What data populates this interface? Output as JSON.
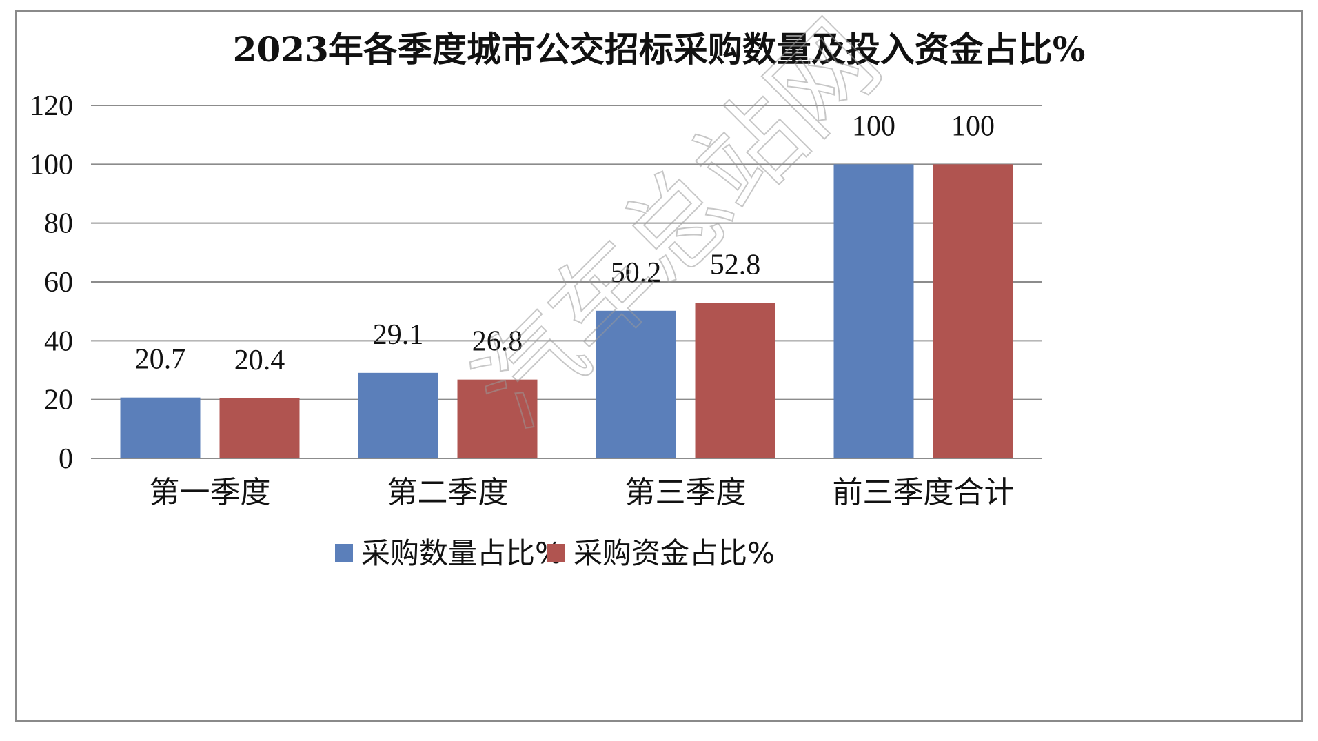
{
  "watermark": "汽车总站网",
  "chart_data": {
    "type": "bar",
    "title": "2023年各季度城市公交招标采购数量及投入资金占比%",
    "categories": [
      "第一季度",
      "第二季度",
      "第三季度",
      "前三季度合计"
    ],
    "series": [
      {
        "name": "采购数量占比%",
        "color": "#5b7fba",
        "values": [
          20.7,
          29.1,
          50.2,
          100
        ]
      },
      {
        "name": "采购资金占比%",
        "color": "#b05450",
        "values": [
          20.4,
          26.8,
          52.8,
          100
        ]
      }
    ],
    "value_labels": [
      [
        "20.7",
        "29.1",
        "50.2",
        "100"
      ],
      [
        "20.4",
        "26.8",
        "52.8",
        "100"
      ]
    ],
    "ylim": [
      0,
      120
    ],
    "yticks": [
      "0",
      "20",
      "40",
      "60",
      "80",
      "100",
      "120"
    ],
    "xlabel": "",
    "ylabel": "",
    "grid": true,
    "legend_position": "bottom"
  }
}
